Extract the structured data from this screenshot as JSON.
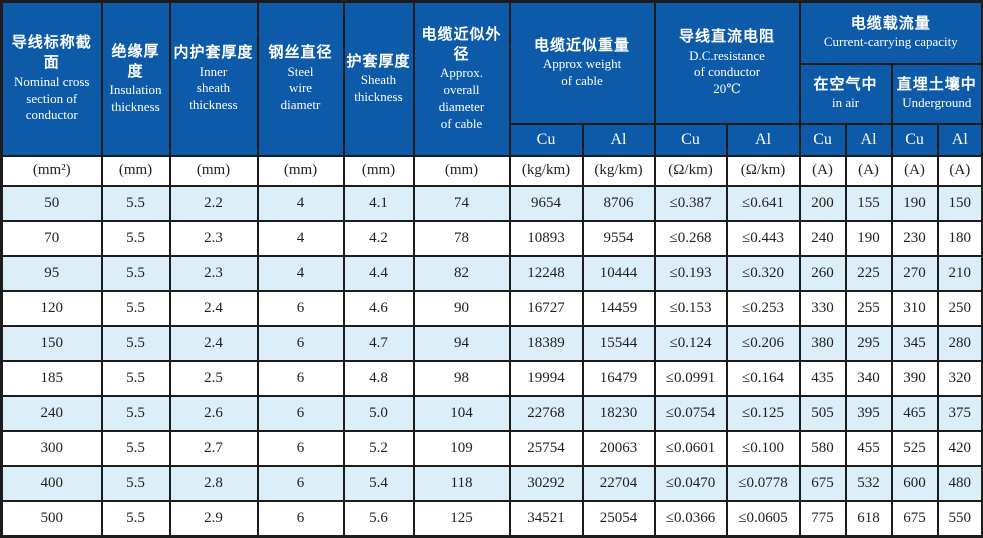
{
  "colors": {
    "header_bg": "#0d5aa9",
    "row_alt_bg": "#dceef8",
    "border_color": "#1c1c1c",
    "header_text": "#ffffff",
    "body_text": "#1f1f1f"
  },
  "chart_data": {
    "type": "table",
    "header": {
      "columns": [
        {
          "zh": "导线标称截面",
          "en": "Nominal cross\nsection of\nconductor"
        },
        {
          "zh": "绝缘厚度",
          "en": "Insulation\nthickness"
        },
        {
          "zh": "内护套厚度",
          "en": "Inner\nsheath\nthickness"
        },
        {
          "zh": "钢丝直径",
          "en": "Steel\nwire\ndiametr"
        },
        {
          "zh": "护套厚度",
          "en": "Sheath\nthickness"
        },
        {
          "zh": "电缆近似外径",
          "en": "Approx.\noverall\ndiameter\nof cable"
        }
      ],
      "weight": {
        "zh": "电缆近似重量",
        "en": "Approx weight\nof cable",
        "sub": [
          "Cu",
          "Al"
        ]
      },
      "resistance": {
        "zh": "导线直流电阻",
        "en": "D.C.resistance\nof conductor\n20℃",
        "sub": [
          "Cu",
          "Al"
        ]
      },
      "capacity": {
        "zh": "电缆载流量",
        "en": "Current-carrying capacity",
        "subgroups": [
          {
            "zh": "在空气中",
            "en": "in air"
          },
          {
            "zh": "直埋土壤中",
            "en": "Underground"
          }
        ],
        "sub": [
          "Cu",
          "Al",
          "Cu",
          "Al"
        ]
      }
    },
    "units": [
      "(mm²)",
      "(mm)",
      "(mm)",
      "(mm)",
      "(mm)",
      "(mm)",
      "(kg/km)",
      "(kg/km)",
      "(Ω/km)",
      "(Ω/km)",
      "(A)",
      "(A)",
      "(A)",
      "(A)"
    ],
    "rows": [
      [
        "50",
        "5.5",
        "2.2",
        "4",
        "4.1",
        "74",
        "9654",
        "8706",
        "≤0.387",
        "≤0.641",
        "200",
        "155",
        "190",
        "150"
      ],
      [
        "70",
        "5.5",
        "2.3",
        "4",
        "4.2",
        "78",
        "10893",
        "9554",
        "≤0.268",
        "≤0.443",
        "240",
        "190",
        "230",
        "180"
      ],
      [
        "95",
        "5.5",
        "2.3",
        "4",
        "4.4",
        "82",
        "12248",
        "10444",
        "≤0.193",
        "≤0.320",
        "260",
        "225",
        "270",
        "210"
      ],
      [
        "120",
        "5.5",
        "2.4",
        "6",
        "4.6",
        "90",
        "16727",
        "14459",
        "≤0.153",
        "≤0.253",
        "330",
        "255",
        "310",
        "250"
      ],
      [
        "150",
        "5.5",
        "2.4",
        "6",
        "4.7",
        "94",
        "18389",
        "15544",
        "≤0.124",
        "≤0.206",
        "380",
        "295",
        "345",
        "280"
      ],
      [
        "185",
        "5.5",
        "2.5",
        "6",
        "4.8",
        "98",
        "19994",
        "16479",
        "≤0.0991",
        "≤0.164",
        "435",
        "340",
        "390",
        "320"
      ],
      [
        "240",
        "5.5",
        "2.6",
        "6",
        "5.0",
        "104",
        "22768",
        "18230",
        "≤0.0754",
        "≤0.125",
        "505",
        "395",
        "465",
        "375"
      ],
      [
        "300",
        "5.5",
        "2.7",
        "6",
        "5.2",
        "109",
        "25754",
        "20063",
        "≤0.0601",
        "≤0.100",
        "580",
        "455",
        "525",
        "420"
      ],
      [
        "400",
        "5.5",
        "2.8",
        "6",
        "5.4",
        "118",
        "30292",
        "22704",
        "≤0.0470",
        "≤0.0778",
        "675",
        "532",
        "600",
        "480"
      ],
      [
        "500",
        "5.5",
        "2.9",
        "6",
        "5.6",
        "125",
        "34521",
        "25054",
        "≤0.0366",
        "≤0.0605",
        "775",
        "618",
        "675",
        "550"
      ]
    ]
  }
}
